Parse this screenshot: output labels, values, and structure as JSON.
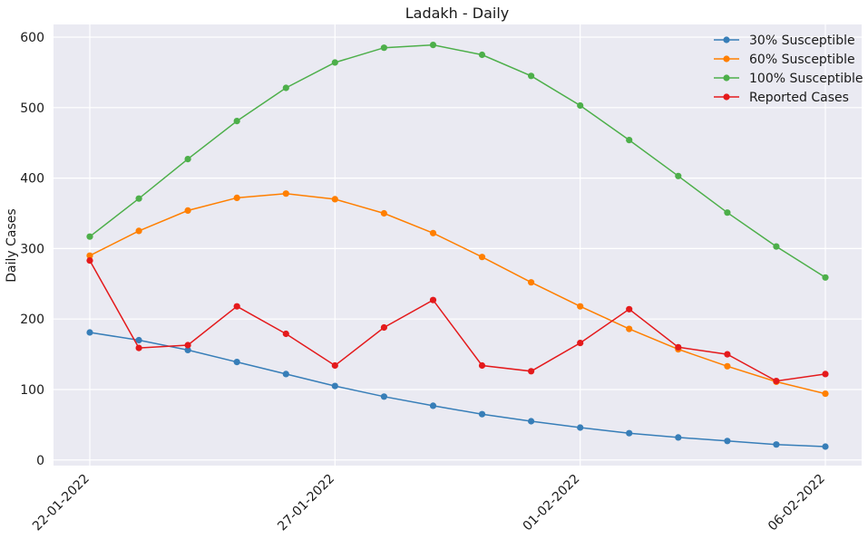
{
  "chart_data": {
    "type": "line",
    "title": "Ladakh - Daily",
    "xlabel": "",
    "ylabel": "Daily Cases",
    "x_dates": [
      "22-01-2022",
      "23-01-2022",
      "24-01-2022",
      "25-01-2022",
      "26-01-2022",
      "27-01-2022",
      "28-01-2022",
      "29-01-2022",
      "30-01-2022",
      "31-01-2022",
      "01-02-2022",
      "02-02-2022",
      "03-02-2022",
      "04-02-2022",
      "05-02-2022",
      "06-02-2022"
    ],
    "x_ticks": [
      "22-01-2022",
      "27-01-2022",
      "01-02-2022",
      "06-02-2022"
    ],
    "y_ticks": [
      0,
      100,
      200,
      300,
      400,
      500,
      600
    ],
    "ylim": [
      -8,
      618
    ],
    "grid": true,
    "legend_position": "top-right",
    "series": [
      {
        "name": "30% Susceptible",
        "color": "#377eb8",
        "values": [
          181,
          170,
          156,
          139,
          122,
          105,
          90,
          77,
          65,
          55,
          46,
          38,
          32,
          27,
          22,
          19
        ]
      },
      {
        "name": "60% Susceptible",
        "color": "#ff7f00",
        "values": [
          290,
          325,
          354,
          372,
          378,
          370,
          350,
          322,
          288,
          252,
          218,
          186,
          157,
          133,
          111,
          94
        ]
      },
      {
        "name": "100% Susceptible",
        "color": "#4daf4a",
        "values": [
          317,
          371,
          427,
          481,
          528,
          564,
          585,
          589,
          575,
          545,
          503,
          454,
          403,
          351,
          303,
          259
        ]
      },
      {
        "name": "Reported Cases",
        "color": "#e41a1c",
        "values": [
          283,
          159,
          163,
          218,
          179,
          134,
          188,
          227,
          134,
          126,
          166,
          214,
          160,
          150,
          112,
          122
        ]
      }
    ]
  }
}
